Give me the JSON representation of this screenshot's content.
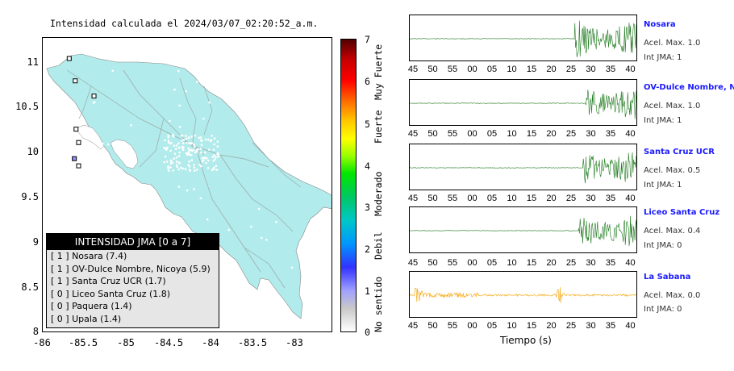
{
  "map": {
    "title": "Intensidad calculada el 2024/03/07_02:20:52_a.m.",
    "y_ticks": [
      "11",
      "10.5",
      "10",
      "9.5",
      "9",
      "8.5",
      "8"
    ],
    "x_ticks": [
      "-86",
      "-85.5",
      "-85",
      "-84.5",
      "-84",
      "-83.5",
      "-83"
    ],
    "land_color": "#b2ebeb",
    "stations": [
      {
        "lon": -85.69,
        "lat": 11.07
      },
      {
        "lon": -85.62,
        "lat": 10.82
      },
      {
        "lon": -85.4,
        "lat": 10.65
      },
      {
        "lon": -85.61,
        "lat": 10.28
      },
      {
        "lon": -85.58,
        "lat": 10.13
      },
      {
        "lon": -85.63,
        "lat": 9.95
      },
      {
        "lon": -85.58,
        "lat": 9.87
      }
    ]
  },
  "colorbar": {
    "ticks": [
      "7",
      "6",
      "5",
      "4",
      "3",
      "2",
      "1",
      "0"
    ],
    "categories": [
      "Muy Fuerte",
      "Fuerte",
      "Moderado",
      "Debil",
      "No sentido"
    ]
  },
  "legend": {
    "title": "INTENSIDAD JMA [0 a 7]",
    "rows": [
      "[ 1 ]  Nosara (7.4)",
      "[ 1 ]  OV-Dulce Nombre, Nicoya (5.9)",
      "[ 1 ]  Santa Cruz UCR (1.7)",
      "[ 0 ]  Liceo Santa Cruz (1.8)",
      "[ 0 ]  Paquera (1.4)",
      "[ 0 ]  Upala (1.4)"
    ]
  },
  "traces": {
    "time_ticks": [
      "45",
      "50",
      "55",
      "00",
      "05",
      "10",
      "15",
      "20",
      "25",
      "30",
      "35",
      "40"
    ],
    "xlabel": "Tiempo (s)",
    "stations": [
      {
        "name": "Nosara",
        "accel": "Acel. Max. 1.0",
        "jma": "Int JMA: 1",
        "color": "#1e7a1e",
        "onset": 0.72
      },
      {
        "name": "OV-Dulce Nombre, Nicoya",
        "accel": "Acel. Max. 1.0",
        "jma": "Int JMA: 1",
        "color": "#1e7a1e",
        "onset": 0.77
      },
      {
        "name": "Santa Cruz UCR",
        "accel": "Acel. Max. 0.5",
        "jma": "Int JMA: 1",
        "color": "#1e7a1e",
        "onset": 0.76
      },
      {
        "name": "Liceo Santa Cruz",
        "accel": "Acel. Max. 0.4",
        "jma": "Int JMA: 0",
        "color": "#1e7a1e",
        "onset": 0.74
      },
      {
        "name": "La Sabana",
        "accel": "Acel. Max. 0.0",
        "jma": "Int JMA: 0",
        "color": "#f5a300",
        "onset": 0.0
      }
    ]
  }
}
